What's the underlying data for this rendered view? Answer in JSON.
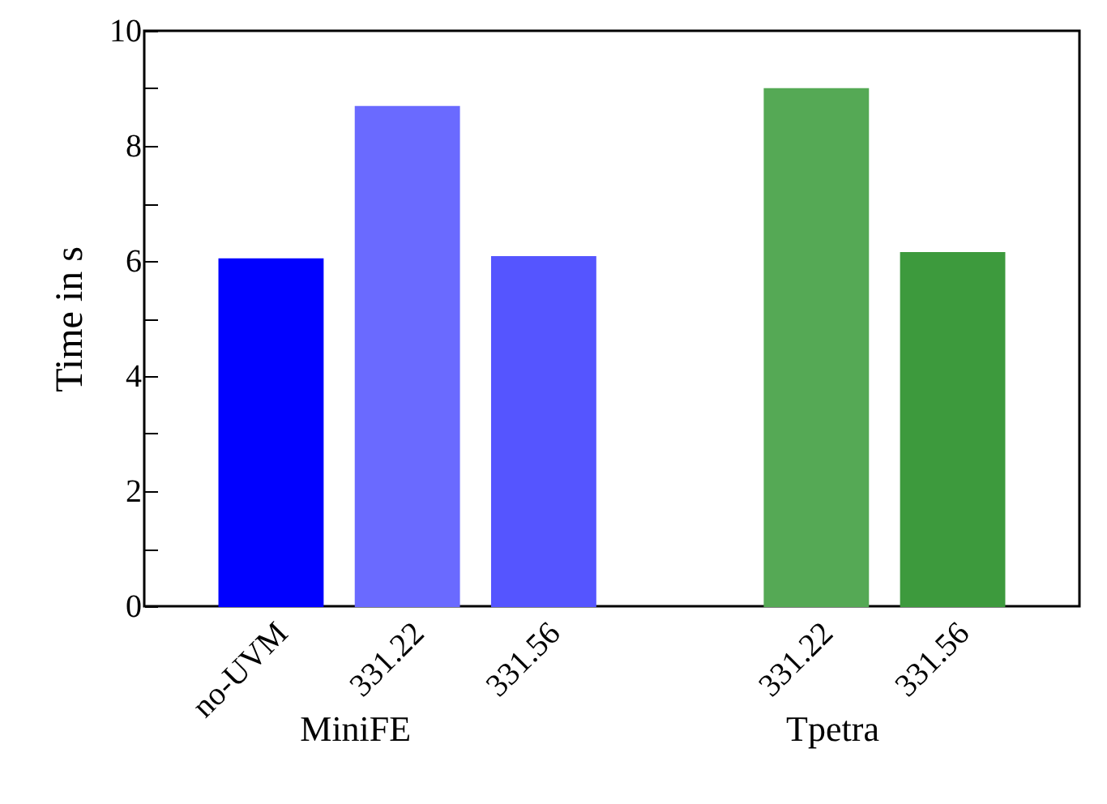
{
  "chart_data": {
    "type": "bar",
    "ylabel": "Time in s",
    "categories": [
      "no-UVM",
      "331.22",
      "331.56",
      null,
      "331.22",
      "331.56"
    ],
    "values": [
      6.03,
      8.68,
      6.07,
      null,
      8.99,
      6.14
    ],
    "colors": [
      "#0000ff",
      "#6a6aff",
      "#5555ff",
      null,
      "#55a955",
      "#3d9a3d"
    ],
    "ylim": [
      0,
      10
    ],
    "yticks": [
      0,
      {
        "value": 1,
        "label": null
      },
      2,
      {
        "value": 3,
        "label": null
      },
      4,
      {
        "value": 5,
        "label": null
      },
      6,
      {
        "value": 7,
        "label": null
      },
      8,
      {
        "value": 9,
        "label": null
      },
      10
    ],
    "grid": false,
    "annotations": [
      "MiniFE",
      "Tpetra"
    ]
  }
}
